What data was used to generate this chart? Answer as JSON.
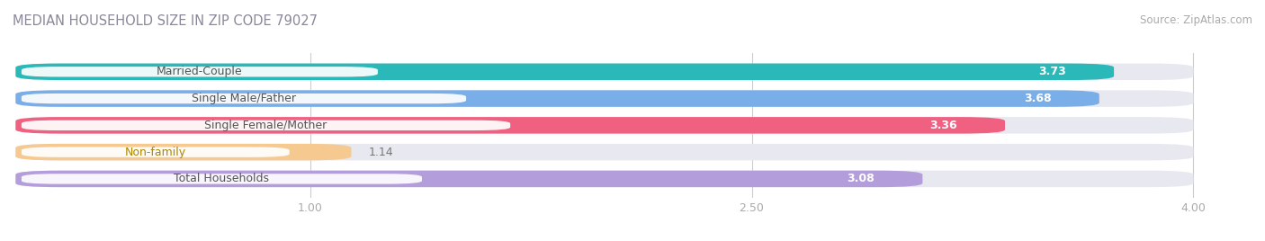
{
  "title": "MEDIAN HOUSEHOLD SIZE IN ZIP CODE 79027",
  "source": "Source: ZipAtlas.com",
  "categories": [
    "Married-Couple",
    "Single Male/Father",
    "Single Female/Mother",
    "Non-family",
    "Total Households"
  ],
  "values": [
    3.73,
    3.68,
    3.36,
    1.14,
    3.08
  ],
  "bar_colors": [
    "#2ab8b8",
    "#7aaee8",
    "#f06080",
    "#f5c990",
    "#b39ddb"
  ],
  "bar_bg_color": "#e8e8f0",
  "xlim_min": 0.0,
  "xlim_max": 4.2,
  "data_max": 4.0,
  "xticks": [
    1.0,
    2.5,
    4.0
  ],
  "title_color": "#888899",
  "source_color": "#aaaaaa",
  "bar_height": 0.62,
  "figsize": [
    14.06,
    2.68
  ],
  "dpi": 100,
  "background_color": "#ffffff",
  "label_fontsize": 9,
  "value_fontsize": 9,
  "title_fontsize": 10.5,
  "source_fontsize": 8.5,
  "label_text_colors": [
    "#555555",
    "#555555",
    "#555555",
    "#aa8800",
    "#555555"
  ]
}
